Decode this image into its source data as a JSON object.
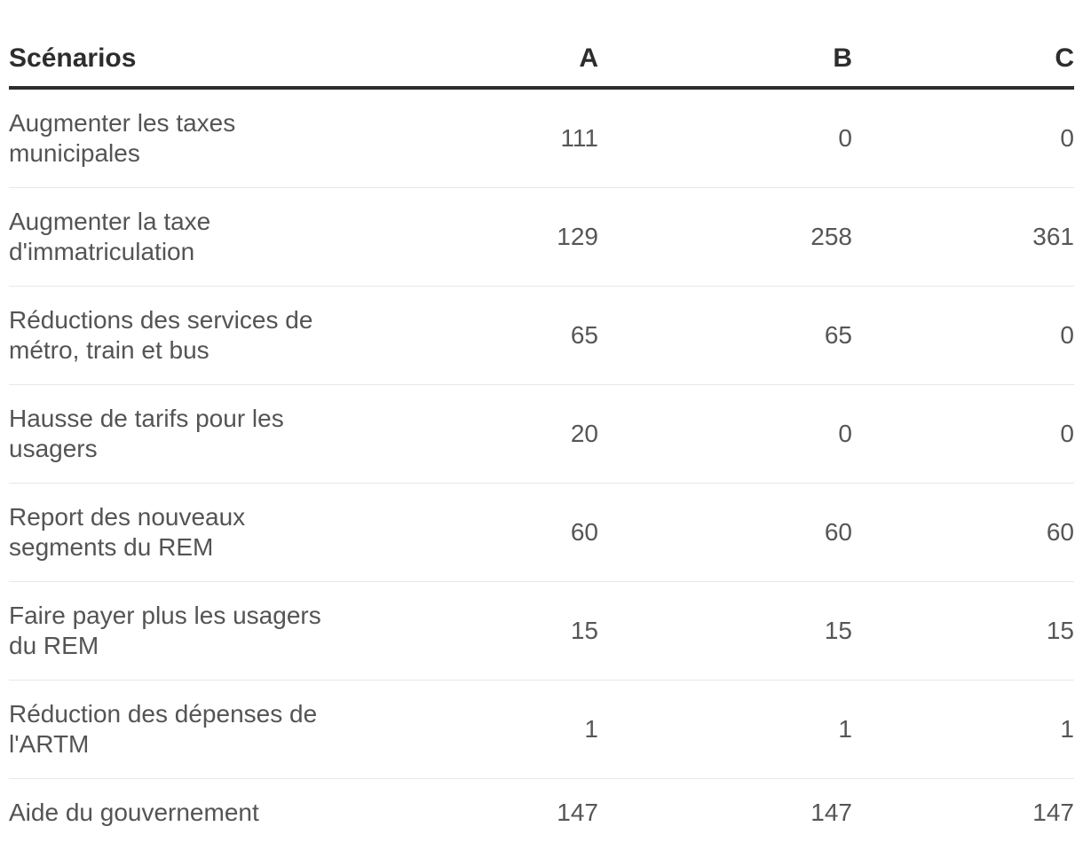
{
  "chart_data": {
    "type": "table",
    "title": "",
    "columns": [
      "Scénarios",
      "A",
      "B",
      "C"
    ],
    "rows": [
      {
        "label": "Augmenter les taxes\nmunicipales",
        "values": [
          111,
          0,
          0
        ]
      },
      {
        "label": "Augmenter la taxe\nd'immatriculation",
        "values": [
          129,
          258,
          361
        ]
      },
      {
        "label": "Réductions des services de\nmétro, train et bus",
        "values": [
          65,
          65,
          0
        ]
      },
      {
        "label": "Hausse de tarifs pour les\nusagers",
        "values": [
          20,
          0,
          0
        ]
      },
      {
        "label": "Report des nouveaux\nsegments du REM",
        "values": [
          60,
          60,
          60
        ]
      },
      {
        "label": "Faire payer plus les usagers\ndu REM",
        "values": [
          15,
          15,
          15
        ]
      },
      {
        "label": "Réduction des dépenses de\nl'ARTM",
        "values": [
          1,
          1,
          1
        ]
      },
      {
        "label": "Aide du gouvernement",
        "values": [
          147,
          147,
          147
        ]
      }
    ],
    "layout": {
      "numeric_columns_alignment": "right",
      "grid": "horizontal-dividers"
    }
  },
  "colors": {
    "background": "#ffffff",
    "header_text": "#2d2d2d",
    "heavy_rule": "#2d2d2d",
    "body_text": "#545454",
    "divider": "#e8e8e8"
  }
}
